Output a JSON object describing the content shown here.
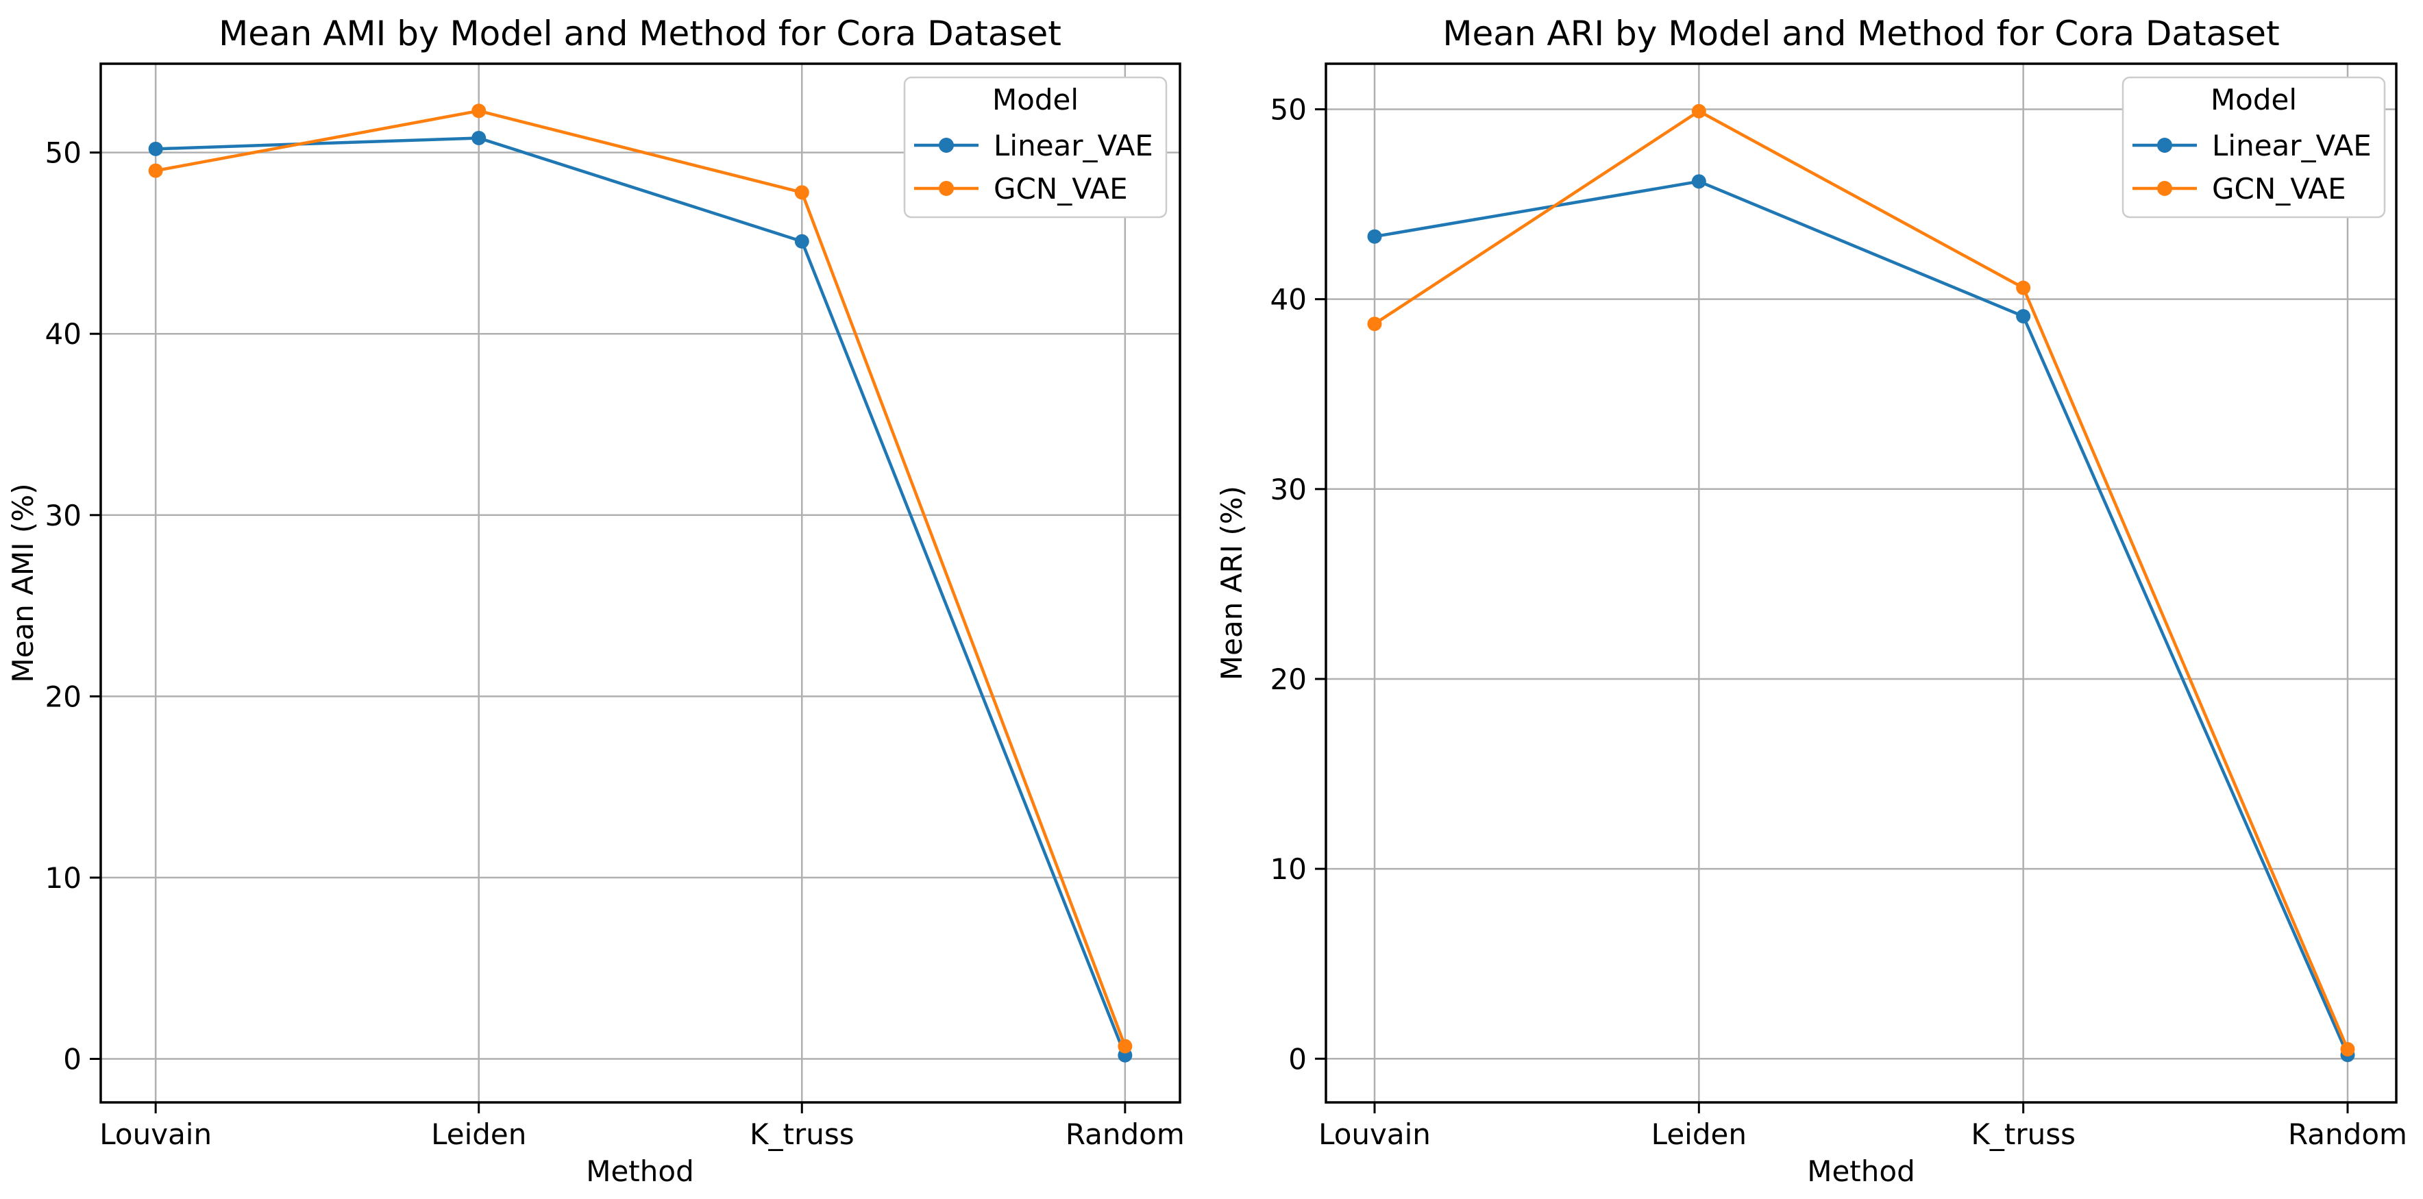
{
  "figure": {
    "background": "#ffffff",
    "grid_color": "#b0b0b0",
    "spine_color": "#000000"
  },
  "chart_data": [
    {
      "type": "line",
      "title": "Mean AMI by Model and Method for Cora Dataset",
      "xlabel": "Method",
      "ylabel": "Mean AMI (%)",
      "categories": [
        "Louvain",
        "Leiden",
        "K_truss",
        "Random"
      ],
      "series": [
        {
          "name": "Linear_VAE",
          "color": "#1f77b4",
          "marker": "o",
          "values": [
            50.2,
            50.8,
            45.1,
            0.2
          ]
        },
        {
          "name": "GCN_VAE",
          "color": "#ff7f0e",
          "marker": "o",
          "values": [
            49.0,
            52.3,
            47.8,
            0.7
          ]
        }
      ],
      "yticks": [
        0,
        10,
        20,
        30,
        40,
        50
      ],
      "ylim": [
        -2.4,
        54.9
      ],
      "grid": true,
      "legend": {
        "title": "Model",
        "location": "upper right"
      }
    },
    {
      "type": "line",
      "title": "Mean ARI by Model and Method for Cora Dataset",
      "xlabel": "Method",
      "ylabel": "Mean ARI (%)",
      "categories": [
        "Louvain",
        "Leiden",
        "K_truss",
        "Random"
      ],
      "series": [
        {
          "name": "Linear_VAE",
          "color": "#1f77b4",
          "marker": "o",
          "values": [
            43.3,
            46.2,
            39.1,
            0.2
          ]
        },
        {
          "name": "GCN_VAE",
          "color": "#ff7f0e",
          "marker": "o",
          "values": [
            38.7,
            49.9,
            40.6,
            0.5
          ]
        }
      ],
      "yticks": [
        0,
        10,
        20,
        30,
        40,
        50
      ],
      "ylim": [
        -2.3,
        52.4
      ],
      "grid": true,
      "legend": {
        "title": "Model",
        "location": "upper right"
      }
    }
  ]
}
